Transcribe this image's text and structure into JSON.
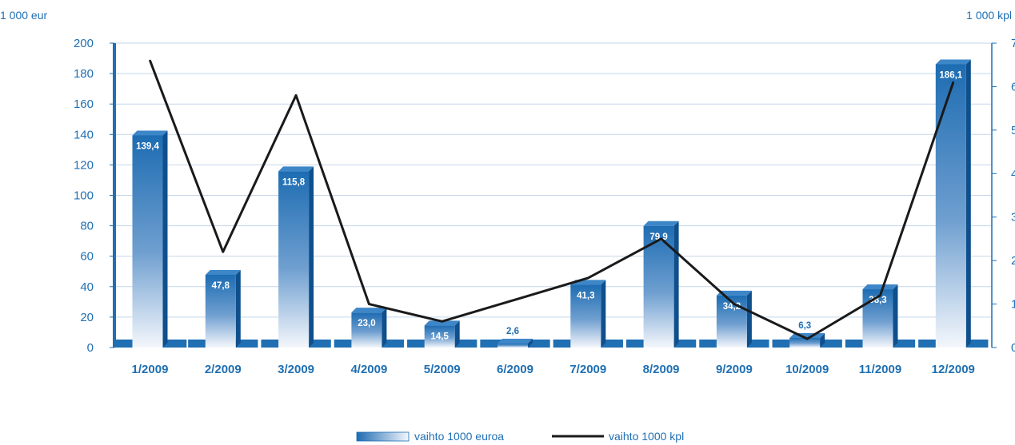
{
  "chart_data": {
    "type": "bar",
    "categories": [
      "1/2009",
      "2/2009",
      "3/2009",
      "4/2009",
      "5/2009",
      "6/2009",
      "7/2009",
      "8/2009",
      "9/2009",
      "10/2009",
      "11/2009",
      "12/2009"
    ],
    "series": [
      {
        "name": "vaihto 1000 euroa",
        "type": "bar",
        "axis": "left",
        "values": [
          139.4,
          47.8,
          115.8,
          23.0,
          14.5,
          2.6,
          41.3,
          79.9,
          34.2,
          6.3,
          38.3,
          186.1
        ],
        "labels": [
          "139,4",
          "47,8",
          "115,8",
          "23,0",
          "14,5",
          "2,6",
          "41,3",
          "79,9",
          "34,2",
          "6,3",
          "38,3",
          "186,1"
        ],
        "color": "#1f6fb2"
      },
      {
        "name": "vaihto 1000 kpl",
        "type": "line",
        "axis": "right",
        "values": [
          6.6,
          2.2,
          5.8,
          1.0,
          0.6,
          1.1,
          1.6,
          2.5,
          1.0,
          0.2,
          1.2,
          6.1
        ],
        "color": "#1a1a1a"
      }
    ],
    "left_axis": {
      "unit_label": "1 000 eur",
      "ylim": [
        0,
        200
      ],
      "ticks": [
        "0",
        "20",
        "40",
        "60",
        "80",
        "100",
        "120",
        "140",
        "160",
        "180",
        "200"
      ]
    },
    "right_axis": {
      "unit_label": "1 000 kpl",
      "ylim": [
        0,
        7
      ],
      "ticks": [
        "0",
        "1",
        "2",
        "3",
        "4",
        "5",
        "6",
        "7"
      ]
    },
    "grid": true,
    "legend": "bottom-center"
  }
}
